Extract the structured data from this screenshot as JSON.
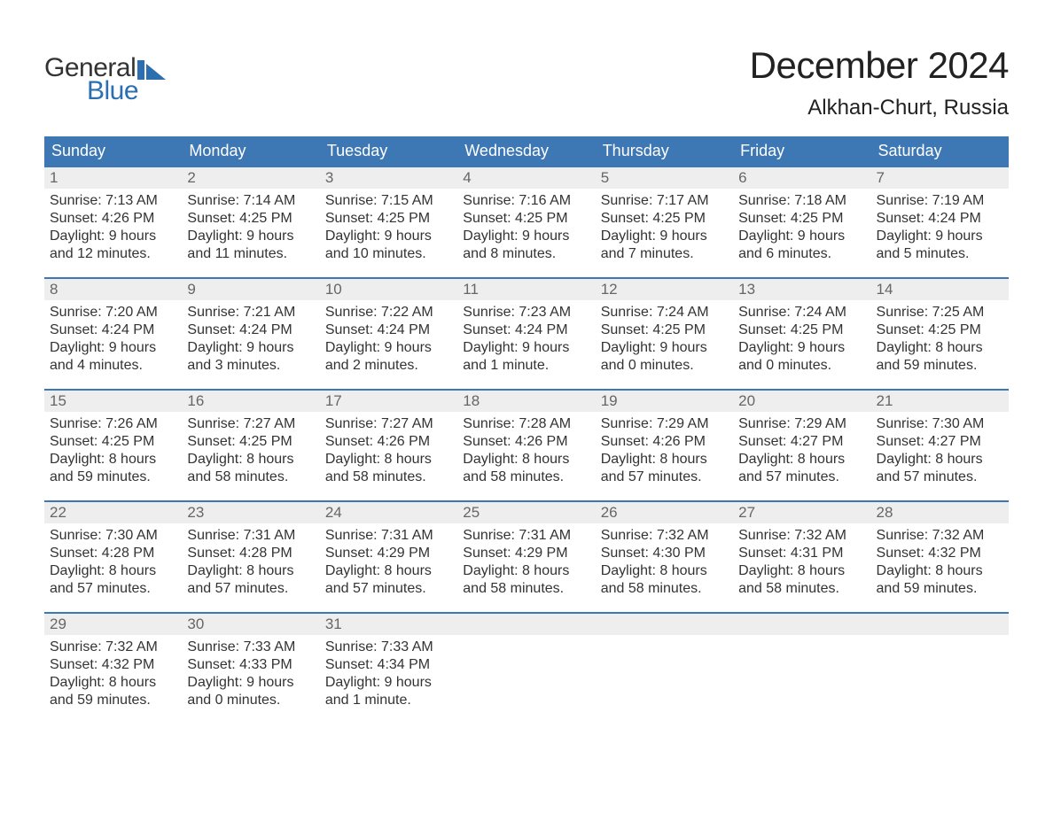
{
  "logo": {
    "word1": "General",
    "word2": "Blue",
    "flag_color": "#2b6fb0",
    "text_dark": "#333333"
  },
  "title": "December 2024",
  "location": "Alkhan-Churt, Russia",
  "colors": {
    "header_bg": "#3d78b5",
    "header_text": "#ffffff",
    "daynum_bg": "#eeeeee",
    "daynum_text": "#666666",
    "body_text": "#333333",
    "rule": "#3d78b5",
    "page_bg": "#ffffff"
  },
  "day_names": [
    "Sunday",
    "Monday",
    "Tuesday",
    "Wednesday",
    "Thursday",
    "Friday",
    "Saturday"
  ],
  "weeks": [
    [
      {
        "num": "1",
        "sunrise": "Sunrise: 7:13 AM",
        "sunset": "Sunset: 4:26 PM",
        "d1": "Daylight: 9 hours",
        "d2": "and 12 minutes."
      },
      {
        "num": "2",
        "sunrise": "Sunrise: 7:14 AM",
        "sunset": "Sunset: 4:25 PM",
        "d1": "Daylight: 9 hours",
        "d2": "and 11 minutes."
      },
      {
        "num": "3",
        "sunrise": "Sunrise: 7:15 AM",
        "sunset": "Sunset: 4:25 PM",
        "d1": "Daylight: 9 hours",
        "d2": "and 10 minutes."
      },
      {
        "num": "4",
        "sunrise": "Sunrise: 7:16 AM",
        "sunset": "Sunset: 4:25 PM",
        "d1": "Daylight: 9 hours",
        "d2": "and 8 minutes."
      },
      {
        "num": "5",
        "sunrise": "Sunrise: 7:17 AM",
        "sunset": "Sunset: 4:25 PM",
        "d1": "Daylight: 9 hours",
        "d2": "and 7 minutes."
      },
      {
        "num": "6",
        "sunrise": "Sunrise: 7:18 AM",
        "sunset": "Sunset: 4:25 PM",
        "d1": "Daylight: 9 hours",
        "d2": "and 6 minutes."
      },
      {
        "num": "7",
        "sunrise": "Sunrise: 7:19 AM",
        "sunset": "Sunset: 4:24 PM",
        "d1": "Daylight: 9 hours",
        "d2": "and 5 minutes."
      }
    ],
    [
      {
        "num": "8",
        "sunrise": "Sunrise: 7:20 AM",
        "sunset": "Sunset: 4:24 PM",
        "d1": "Daylight: 9 hours",
        "d2": "and 4 minutes."
      },
      {
        "num": "9",
        "sunrise": "Sunrise: 7:21 AM",
        "sunset": "Sunset: 4:24 PM",
        "d1": "Daylight: 9 hours",
        "d2": "and 3 minutes."
      },
      {
        "num": "10",
        "sunrise": "Sunrise: 7:22 AM",
        "sunset": "Sunset: 4:24 PM",
        "d1": "Daylight: 9 hours",
        "d2": "and 2 minutes."
      },
      {
        "num": "11",
        "sunrise": "Sunrise: 7:23 AM",
        "sunset": "Sunset: 4:24 PM",
        "d1": "Daylight: 9 hours",
        "d2": "and 1 minute."
      },
      {
        "num": "12",
        "sunrise": "Sunrise: 7:24 AM",
        "sunset": "Sunset: 4:25 PM",
        "d1": "Daylight: 9 hours",
        "d2": "and 0 minutes."
      },
      {
        "num": "13",
        "sunrise": "Sunrise: 7:24 AM",
        "sunset": "Sunset: 4:25 PM",
        "d1": "Daylight: 9 hours",
        "d2": "and 0 minutes."
      },
      {
        "num": "14",
        "sunrise": "Sunrise: 7:25 AM",
        "sunset": "Sunset: 4:25 PM",
        "d1": "Daylight: 8 hours",
        "d2": "and 59 minutes."
      }
    ],
    [
      {
        "num": "15",
        "sunrise": "Sunrise: 7:26 AM",
        "sunset": "Sunset: 4:25 PM",
        "d1": "Daylight: 8 hours",
        "d2": "and 59 minutes."
      },
      {
        "num": "16",
        "sunrise": "Sunrise: 7:27 AM",
        "sunset": "Sunset: 4:25 PM",
        "d1": "Daylight: 8 hours",
        "d2": "and 58 minutes."
      },
      {
        "num": "17",
        "sunrise": "Sunrise: 7:27 AM",
        "sunset": "Sunset: 4:26 PM",
        "d1": "Daylight: 8 hours",
        "d2": "and 58 minutes."
      },
      {
        "num": "18",
        "sunrise": "Sunrise: 7:28 AM",
        "sunset": "Sunset: 4:26 PM",
        "d1": "Daylight: 8 hours",
        "d2": "and 58 minutes."
      },
      {
        "num": "19",
        "sunrise": "Sunrise: 7:29 AM",
        "sunset": "Sunset: 4:26 PM",
        "d1": "Daylight: 8 hours",
        "d2": "and 57 minutes."
      },
      {
        "num": "20",
        "sunrise": "Sunrise: 7:29 AM",
        "sunset": "Sunset: 4:27 PM",
        "d1": "Daylight: 8 hours",
        "d2": "and 57 minutes."
      },
      {
        "num": "21",
        "sunrise": "Sunrise: 7:30 AM",
        "sunset": "Sunset: 4:27 PM",
        "d1": "Daylight: 8 hours",
        "d2": "and 57 minutes."
      }
    ],
    [
      {
        "num": "22",
        "sunrise": "Sunrise: 7:30 AM",
        "sunset": "Sunset: 4:28 PM",
        "d1": "Daylight: 8 hours",
        "d2": "and 57 minutes."
      },
      {
        "num": "23",
        "sunrise": "Sunrise: 7:31 AM",
        "sunset": "Sunset: 4:28 PM",
        "d1": "Daylight: 8 hours",
        "d2": "and 57 minutes."
      },
      {
        "num": "24",
        "sunrise": "Sunrise: 7:31 AM",
        "sunset": "Sunset: 4:29 PM",
        "d1": "Daylight: 8 hours",
        "d2": "and 57 minutes."
      },
      {
        "num": "25",
        "sunrise": "Sunrise: 7:31 AM",
        "sunset": "Sunset: 4:29 PM",
        "d1": "Daylight: 8 hours",
        "d2": "and 58 minutes."
      },
      {
        "num": "26",
        "sunrise": "Sunrise: 7:32 AM",
        "sunset": "Sunset: 4:30 PM",
        "d1": "Daylight: 8 hours",
        "d2": "and 58 minutes."
      },
      {
        "num": "27",
        "sunrise": "Sunrise: 7:32 AM",
        "sunset": "Sunset: 4:31 PM",
        "d1": "Daylight: 8 hours",
        "d2": "and 58 minutes."
      },
      {
        "num": "28",
        "sunrise": "Sunrise: 7:32 AM",
        "sunset": "Sunset: 4:32 PM",
        "d1": "Daylight: 8 hours",
        "d2": "and 59 minutes."
      }
    ],
    [
      {
        "num": "29",
        "sunrise": "Sunrise: 7:32 AM",
        "sunset": "Sunset: 4:32 PM",
        "d1": "Daylight: 8 hours",
        "d2": "and 59 minutes."
      },
      {
        "num": "30",
        "sunrise": "Sunrise: 7:33 AM",
        "sunset": "Sunset: 4:33 PM",
        "d1": "Daylight: 9 hours",
        "d2": "and 0 minutes."
      },
      {
        "num": "31",
        "sunrise": "Sunrise: 7:33 AM",
        "sunset": "Sunset: 4:34 PM",
        "d1": "Daylight: 9 hours",
        "d2": "and 1 minute."
      },
      {
        "empty": true
      },
      {
        "empty": true
      },
      {
        "empty": true
      },
      {
        "empty": true
      }
    ]
  ]
}
